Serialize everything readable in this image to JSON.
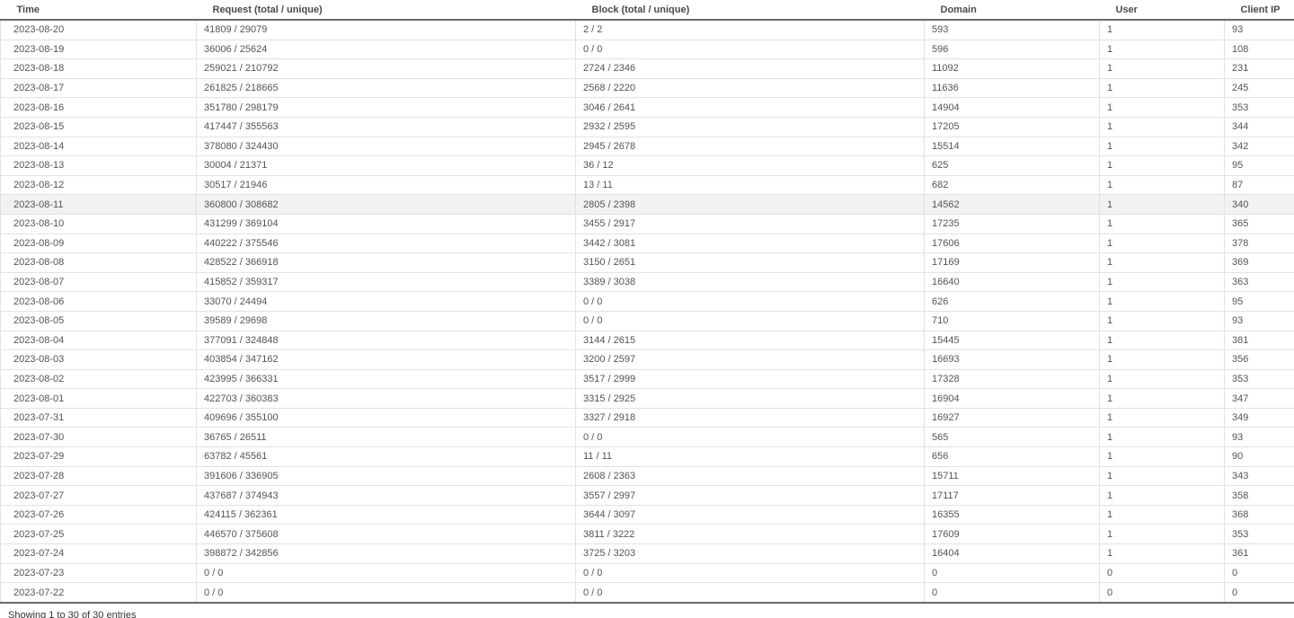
{
  "table": {
    "columns": [
      {
        "key": "time",
        "label": "Time"
      },
      {
        "key": "request",
        "label": "Request (total / unique)"
      },
      {
        "key": "block",
        "label": "Block (total / unique)"
      },
      {
        "key": "domain",
        "label": "Domain"
      },
      {
        "key": "user",
        "label": "User"
      },
      {
        "key": "client_ip",
        "label": "Client IP"
      }
    ],
    "highlighted_row_time": "2023-08-11",
    "rows": [
      [
        "2023-08-20",
        "41809 / 29079",
        "2 / 2",
        "593",
        "1",
        "93"
      ],
      [
        "2023-08-19",
        "36006 / 25624",
        "0 / 0",
        "596",
        "1",
        "108"
      ],
      [
        "2023-08-18",
        "259021 / 210792",
        "2724 / 2346",
        "11092",
        "1",
        "231"
      ],
      [
        "2023-08-17",
        "261825 / 218665",
        "2568 / 2220",
        "11636",
        "1",
        "245"
      ],
      [
        "2023-08-16",
        "351780 / 298179",
        "3046 / 2641",
        "14904",
        "1",
        "353"
      ],
      [
        "2023-08-15",
        "417447 / 355563",
        "2932 / 2595",
        "17205",
        "1",
        "344"
      ],
      [
        "2023-08-14",
        "378080 / 324430",
        "2945 / 2678",
        "15514",
        "1",
        "342"
      ],
      [
        "2023-08-13",
        "30004 / 21371",
        "36 / 12",
        "625",
        "1",
        "95"
      ],
      [
        "2023-08-12",
        "30517 / 21946",
        "13 / 11",
        "682",
        "1",
        "87"
      ],
      [
        "2023-08-11",
        "360800 / 308682",
        "2805 / 2398",
        "14562",
        "1",
        "340"
      ],
      [
        "2023-08-10",
        "431299 / 369104",
        "3455 / 2917",
        "17235",
        "1",
        "365"
      ],
      [
        "2023-08-09",
        "440222 / 375546",
        "3442 / 3081",
        "17606",
        "1",
        "378"
      ],
      [
        "2023-08-08",
        "428522 / 366918",
        "3150 / 2651",
        "17169",
        "1",
        "369"
      ],
      [
        "2023-08-07",
        "415852 / 359317",
        "3389 / 3038",
        "16640",
        "1",
        "363"
      ],
      [
        "2023-08-06",
        "33070 / 24494",
        "0 / 0",
        "626",
        "1",
        "95"
      ],
      [
        "2023-08-05",
        "39589 / 29698",
        "0 / 0",
        "710",
        "1",
        "93"
      ],
      [
        "2023-08-04",
        "377091 / 324848",
        "3144 / 2615",
        "15445",
        "1",
        "381"
      ],
      [
        "2023-08-03",
        "403854 / 347162",
        "3200 / 2597",
        "16693",
        "1",
        "356"
      ],
      [
        "2023-08-02",
        "423995 / 366331",
        "3517 / 2999",
        "17328",
        "1",
        "353"
      ],
      [
        "2023-08-01",
        "422703 / 360383",
        "3315 / 2925",
        "16904",
        "1",
        "347"
      ],
      [
        "2023-07-31",
        "409696 / 355100",
        "3327 / 2918",
        "16927",
        "1",
        "349"
      ],
      [
        "2023-07-30",
        "36765 / 26511",
        "0 / 0",
        "565",
        "1",
        "93"
      ],
      [
        "2023-07-29",
        "63782 / 45561",
        "11 / 11",
        "656",
        "1",
        "90"
      ],
      [
        "2023-07-28",
        "391606 / 336905",
        "2608 / 2363",
        "15711",
        "1",
        "343"
      ],
      [
        "2023-07-27",
        "437687 / 374943",
        "3557 / 2997",
        "17117",
        "1",
        "358"
      ],
      [
        "2023-07-26",
        "424115 / 362361",
        "3644 / 3097",
        "16355",
        "1",
        "368"
      ],
      [
        "2023-07-25",
        "446570 / 375608",
        "3811 / 3222",
        "17609",
        "1",
        "353"
      ],
      [
        "2023-07-24",
        "398872 / 342856",
        "3725 / 3203",
        "16404",
        "1",
        "361"
      ],
      [
        "2023-07-23",
        "0 / 0",
        "0 / 0",
        "0",
        "0",
        "0"
      ],
      [
        "2023-07-22",
        "0 / 0",
        "0 / 0",
        "0",
        "0",
        "0"
      ]
    ]
  },
  "footer": {
    "info": "Showing 1 to 30 of 30 entries"
  },
  "colors": {
    "header_rule": "#6a6a6a",
    "cell_border": "#e2e2e2",
    "highlight_row_bg": "#f2f2f2",
    "header_text": "#4a4a4a",
    "body_text": "#545454"
  }
}
